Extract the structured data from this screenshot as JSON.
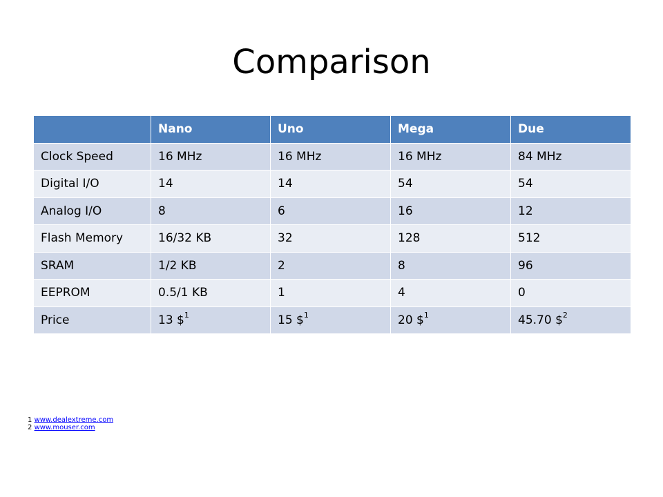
{
  "slide": {
    "title": "Comparison"
  },
  "table": {
    "headers": [
      "",
      "Nano",
      "Uno",
      "Mega",
      "Due"
    ],
    "rows": [
      {
        "label": "Clock Speed",
        "cells": [
          {
            "text": "16 MHz"
          },
          {
            "text": "16 MHz"
          },
          {
            "text": "16 MHz"
          },
          {
            "text": "84 MHz"
          }
        ]
      },
      {
        "label": "Digital I/O",
        "cells": [
          {
            "text": "14"
          },
          {
            "text": "14"
          },
          {
            "text": "54"
          },
          {
            "text": "54"
          }
        ]
      },
      {
        "label": "Analog I/O",
        "cells": [
          {
            "text": "8"
          },
          {
            "text": "6"
          },
          {
            "text": "16"
          },
          {
            "text": "12"
          }
        ]
      },
      {
        "label": "Flash Memory",
        "cells": [
          {
            "text": "16/32 KB"
          },
          {
            "text": "32"
          },
          {
            "text": "128"
          },
          {
            "text": "512"
          }
        ]
      },
      {
        "label": "SRAM",
        "cells": [
          {
            "text": "1/2 KB"
          },
          {
            "text": "2"
          },
          {
            "text": "8"
          },
          {
            "text": "96"
          }
        ]
      },
      {
        "label": "EEPROM",
        "cells": [
          {
            "text": "0.5/1 KB"
          },
          {
            "text": "1"
          },
          {
            "text": "4"
          },
          {
            "text": "0"
          }
        ]
      },
      {
        "label": "Price",
        "cells": [
          {
            "text": "13 $",
            "sup": "1"
          },
          {
            "text": "15 $",
            "sup": "1"
          },
          {
            "text": "20 $",
            "sup": "1"
          },
          {
            "text": "45.70 $",
            "sup": "2"
          }
        ]
      }
    ]
  },
  "footnotes": [
    {
      "number": "1",
      "link": "www.dealextreme.com"
    },
    {
      "number": "2",
      "link": "www.mouser.com"
    }
  ],
  "colors": {
    "header_bg": "#4f81bd",
    "row_odd_bg": "#d0d8e8",
    "row_even_bg": "#e9edf4",
    "link": "#0000ff"
  }
}
